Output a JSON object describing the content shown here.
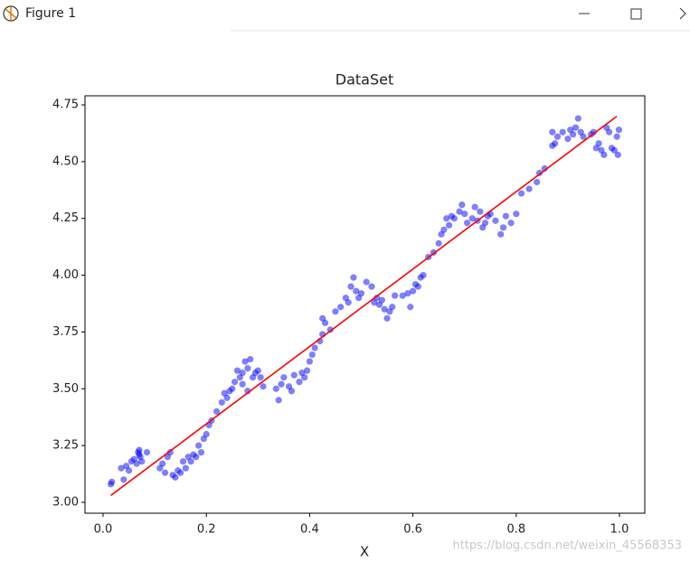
{
  "window": {
    "title": "Figure 1"
  },
  "watermark": "https://blog.csdn.net/weixin_45568353",
  "chart_data": {
    "type": "scatter",
    "title": "DataSet",
    "xlabel": "X",
    "xlim": [
      -0.035,
      1.049
    ],
    "ylim": [
      2.952,
      4.79
    ],
    "xticks": [
      {
        "value": 0,
        "label": "0.0"
      },
      0.2,
      0.4,
      0.6,
      0.8,
      {
        "value": 1,
        "label": "1.0"
      }
    ],
    "yticks": [
      {
        "value": 3,
        "label": "3.00"
      },
      3.25,
      {
        "value": 3.5,
        "label": "3.50"
      },
      3.75,
      {
        "value": 4,
        "label": "4.00"
      },
      4.25,
      {
        "value": 4.5,
        "label": "4.50"
      },
      4.75
    ],
    "series": [
      {
        "type": "scatter",
        "color": "#0000ff",
        "x": [
          0.015,
          0.017,
          0.035,
          0.04,
          0.045,
          0.05,
          0.055,
          0.06,
          0.065,
          0.068,
          0.07,
          0.072,
          0.075,
          0.085,
          0.07,
          0.11,
          0.115,
          0.12,
          0.125,
          0.13,
          0.135,
          0.14,
          0.145,
          0.15,
          0.155,
          0.16,
          0.165,
          0.17,
          0.175,
          0.18,
          0.185,
          0.19,
          0.195,
          0.2,
          0.205,
          0.21,
          0.22,
          0.23,
          0.235,
          0.24,
          0.245,
          0.25,
          0.255,
          0.26,
          0.265,
          0.27,
          0.275,
          0.28,
          0.285,
          0.29,
          0.295,
          0.3,
          0.305,
          0.31,
          0.28,
          0.27,
          0.335,
          0.34,
          0.345,
          0.35,
          0.36,
          0.365,
          0.37,
          0.38,
          0.385,
          0.39,
          0.395,
          0.4,
          0.405,
          0.41,
          0.42,
          0.425,
          0.43,
          0.425,
          0.44,
          0.45,
          0.46,
          0.47,
          0.475,
          0.48,
          0.485,
          0.49,
          0.495,
          0.5,
          0.51,
          0.52,
          0.525,
          0.53,
          0.535,
          0.54,
          0.545,
          0.55,
          0.555,
          0.56,
          0.565,
          0.58,
          0.59,
          0.595,
          0.6,
          0.605,
          0.61,
          0.615,
          0.62,
          0.63,
          0.64,
          0.65,
          0.655,
          0.66,
          0.665,
          0.67,
          0.675,
          0.68,
          0.69,
          0.695,
          0.7,
          0.705,
          0.715,
          0.72,
          0.725,
          0.73,
          0.735,
          0.74,
          0.745,
          0.75,
          0.76,
          0.77,
          0.775,
          0.78,
          0.79,
          0.8,
          0.81,
          0.825,
          0.84,
          0.845,
          0.855,
          0.87,
          0.875,
          0.88,
          0.89,
          0.9,
          0.905,
          0.91,
          0.915,
          0.92,
          0.925,
          0.93,
          0.945,
          0.95,
          0.955,
          0.96,
          0.965,
          0.97,
          0.975,
          0.98,
          0.985,
          0.99,
          0.995,
          0.997,
          0.999,
          0.87
        ],
        "values": [
          3.08,
          3.09,
          3.15,
          3.1,
          3.16,
          3.14,
          3.18,
          3.19,
          3.17,
          3.22,
          3.23,
          3.2,
          3.18,
          3.22,
          3.21,
          3.15,
          3.17,
          3.13,
          3.2,
          3.22,
          3.12,
          3.11,
          3.14,
          3.13,
          3.18,
          3.15,
          3.2,
          3.18,
          3.21,
          3.2,
          3.25,
          3.22,
          3.28,
          3.3,
          3.34,
          3.36,
          3.4,
          3.44,
          3.48,
          3.46,
          3.49,
          3.5,
          3.53,
          3.58,
          3.55,
          3.57,
          3.62,
          3.59,
          3.63,
          3.55,
          3.57,
          3.58,
          3.55,
          3.51,
          3.49,
          3.52,
          3.5,
          3.45,
          3.52,
          3.55,
          3.51,
          3.49,
          3.56,
          3.53,
          3.57,
          3.55,
          3.58,
          3.62,
          3.65,
          3.68,
          3.71,
          3.74,
          3.79,
          3.81,
          3.76,
          3.84,
          3.86,
          3.9,
          3.88,
          3.95,
          3.99,
          3.93,
          3.9,
          3.92,
          3.97,
          3.95,
          3.88,
          3.9,
          3.87,
          3.89,
          3.85,
          3.81,
          3.84,
          3.86,
          3.91,
          3.91,
          3.92,
          3.86,
          3.93,
          3.96,
          3.95,
          3.99,
          4.0,
          4.08,
          4.1,
          4.14,
          4.18,
          4.2,
          4.25,
          4.22,
          4.26,
          4.25,
          4.28,
          4.31,
          4.27,
          4.23,
          4.25,
          4.3,
          4.24,
          4.28,
          4.21,
          4.23,
          4.26,
          4.27,
          4.24,
          4.18,
          4.21,
          4.26,
          4.23,
          4.27,
          4.36,
          4.38,
          4.41,
          4.45,
          4.47,
          4.63,
          4.58,
          4.61,
          4.63,
          4.6,
          4.64,
          4.62,
          4.65,
          4.69,
          4.63,
          4.61,
          4.62,
          4.63,
          4.56,
          4.58,
          4.55,
          4.53,
          4.65,
          4.63,
          4.56,
          4.55,
          4.61,
          4.53,
          4.64,
          4.57
        ]
      },
      {
        "type": "line",
        "color": "#ff0000",
        "x": [
          0.015,
          0.995
        ],
        "values": [
          3.03,
          4.7
        ]
      }
    ]
  }
}
